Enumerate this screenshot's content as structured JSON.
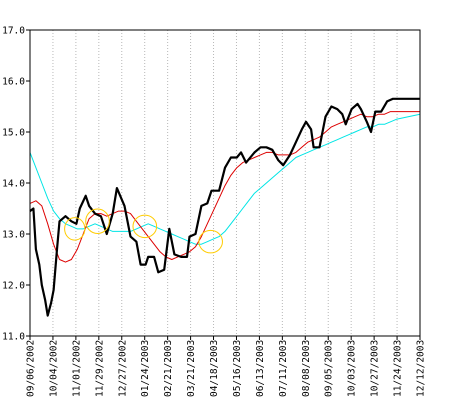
{
  "chart_data": {
    "type": "line",
    "title": "",
    "xlabel": "",
    "ylabel": "",
    "ylim": [
      11.0,
      17.0
    ],
    "y_ticks": [
      "11.0",
      "12.0",
      "13.0",
      "14.0",
      "15.0",
      "16.0",
      "17.0"
    ],
    "x_tick_labels": [
      "09/06/2002",
      "10/04/2002",
      "11/01/2002",
      "11/29/2002",
      "12/27/2002",
      "01/24/2003",
      "02/21/2003",
      "03/21/2003",
      "04/18/2003",
      "05/16/2003",
      "06/13/2003",
      "07/11/2003",
      "08/08/2003",
      "09/05/2003",
      "10/03/2003",
      "10/27/2003",
      "11/24/2003",
      "12/12/2003"
    ],
    "grid": "vertical dotted lines at x ticks",
    "x_range": [
      "2002-09-06",
      "2003-12-12"
    ],
    "series": [
      {
        "key": "price",
        "color": "#000000",
        "points": [
          [
            "2002-09-06",
            13.45
          ],
          [
            "2002-09-10",
            13.5
          ],
          [
            "2002-09-13",
            12.7
          ],
          [
            "2002-09-17",
            12.4
          ],
          [
            "2002-09-20",
            12.0
          ],
          [
            "2002-09-24",
            11.7
          ],
          [
            "2002-09-27",
            11.4
          ],
          [
            "2002-10-01",
            11.65
          ],
          [
            "2002-10-04",
            11.9
          ],
          [
            "2002-10-08",
            12.7
          ],
          [
            "2002-10-11",
            13.25
          ],
          [
            "2002-10-18",
            13.35
          ],
          [
            "2002-10-25",
            13.25
          ],
          [
            "2002-10-31",
            13.2
          ],
          [
            "2002-11-04",
            13.5
          ],
          [
            "2002-11-11",
            13.75
          ],
          [
            "2002-11-15",
            13.55
          ],
          [
            "2002-11-22",
            13.4
          ],
          [
            "2002-11-29",
            13.35
          ],
          [
            "2002-12-06",
            13.0
          ],
          [
            "2002-12-13",
            13.4
          ],
          [
            "2002-12-18",
            13.9
          ],
          [
            "2002-12-27",
            13.55
          ],
          [
            "2003-01-03",
            12.95
          ],
          [
            "2003-01-10",
            12.85
          ],
          [
            "2003-01-15",
            12.4
          ],
          [
            "2003-01-21",
            12.4
          ],
          [
            "2003-01-24",
            12.55
          ],
          [
            "2003-01-31",
            12.55
          ],
          [
            "2003-02-05",
            12.25
          ],
          [
            "2003-02-12",
            12.3
          ],
          [
            "2003-02-18",
            13.1
          ],
          [
            "2003-02-24",
            12.6
          ],
          [
            "2003-03-04",
            12.55
          ],
          [
            "2003-03-11",
            12.55
          ],
          [
            "2003-03-14",
            12.95
          ],
          [
            "2003-03-21",
            13.0
          ],
          [
            "2003-03-28",
            13.55
          ],
          [
            "2003-04-04",
            13.6
          ],
          [
            "2003-04-09",
            13.85
          ],
          [
            "2003-04-18",
            13.85
          ],
          [
            "2003-04-25",
            14.3
          ],
          [
            "2003-05-02",
            14.5
          ],
          [
            "2003-05-09",
            14.5
          ],
          [
            "2003-05-14",
            14.6
          ],
          [
            "2003-05-20",
            14.4
          ],
          [
            "2003-05-30",
            14.6
          ],
          [
            "2003-06-06",
            14.7
          ],
          [
            "2003-06-13",
            14.7
          ],
          [
            "2003-06-20",
            14.65
          ],
          [
            "2003-06-27",
            14.45
          ],
          [
            "2003-07-03",
            14.35
          ],
          [
            "2003-07-11",
            14.55
          ],
          [
            "2003-07-18",
            14.8
          ],
          [
            "2003-07-25",
            15.05
          ],
          [
            "2003-07-30",
            15.2
          ],
          [
            "2003-08-05",
            15.05
          ],
          [
            "2003-08-08",
            14.7
          ],
          [
            "2003-08-15",
            14.7
          ],
          [
            "2003-08-22",
            15.3
          ],
          [
            "2003-08-29",
            15.5
          ],
          [
            "2003-09-05",
            15.45
          ],
          [
            "2003-09-11",
            15.35
          ],
          [
            "2003-09-15",
            15.15
          ],
          [
            "2003-09-22",
            15.45
          ],
          [
            "2003-09-29",
            15.55
          ],
          [
            "2003-10-03",
            15.45
          ],
          [
            "2003-10-10",
            15.2
          ],
          [
            "2003-10-15",
            15.0
          ],
          [
            "2003-10-20",
            15.4
          ],
          [
            "2003-10-27",
            15.4
          ],
          [
            "2003-11-03",
            15.6
          ],
          [
            "2003-11-10",
            15.65
          ],
          [
            "2003-12-12",
            15.65
          ]
        ]
      },
      {
        "key": "moving_average_short",
        "color": "#dd0000",
        "points": [
          [
            "2002-09-06",
            13.6
          ],
          [
            "2002-09-13",
            13.65
          ],
          [
            "2002-09-20",
            13.55
          ],
          [
            "2002-09-27",
            13.2
          ],
          [
            "2002-10-04",
            12.8
          ],
          [
            "2002-10-11",
            12.5
          ],
          [
            "2002-10-18",
            12.45
          ],
          [
            "2002-10-25",
            12.5
          ],
          [
            "2002-11-01",
            12.7
          ],
          [
            "2002-11-08",
            13.0
          ],
          [
            "2002-11-15",
            13.3
          ],
          [
            "2002-11-22",
            13.4
          ],
          [
            "2002-11-29",
            13.4
          ],
          [
            "2002-12-06",
            13.35
          ],
          [
            "2002-12-13",
            13.4
          ],
          [
            "2002-12-20",
            13.45
          ],
          [
            "2002-12-27",
            13.45
          ],
          [
            "2003-01-03",
            13.4
          ],
          [
            "2003-01-10",
            13.25
          ],
          [
            "2003-01-17",
            13.1
          ],
          [
            "2003-01-24",
            12.95
          ],
          [
            "2003-01-31",
            12.8
          ],
          [
            "2003-02-07",
            12.65
          ],
          [
            "2003-02-14",
            12.55
          ],
          [
            "2003-02-21",
            12.5
          ],
          [
            "2003-02-28",
            12.55
          ],
          [
            "2003-03-07",
            12.6
          ],
          [
            "2003-03-14",
            12.65
          ],
          [
            "2003-03-21",
            12.75
          ],
          [
            "2003-03-28",
            12.95
          ],
          [
            "2003-04-04",
            13.2
          ],
          [
            "2003-04-11",
            13.45
          ],
          [
            "2003-04-18",
            13.7
          ],
          [
            "2003-04-25",
            13.95
          ],
          [
            "2003-05-02",
            14.15
          ],
          [
            "2003-05-09",
            14.3
          ],
          [
            "2003-05-16",
            14.4
          ],
          [
            "2003-05-23",
            14.45
          ],
          [
            "2003-05-30",
            14.5
          ],
          [
            "2003-06-06",
            14.55
          ],
          [
            "2003-06-13",
            14.6
          ],
          [
            "2003-06-20",
            14.6
          ],
          [
            "2003-06-27",
            14.55
          ],
          [
            "2003-07-04",
            14.55
          ],
          [
            "2003-07-11",
            14.55
          ],
          [
            "2003-07-18",
            14.6
          ],
          [
            "2003-07-25",
            14.7
          ],
          [
            "2003-08-01",
            14.8
          ],
          [
            "2003-08-08",
            14.85
          ],
          [
            "2003-08-15",
            14.9
          ],
          [
            "2003-08-22",
            15.0
          ],
          [
            "2003-08-29",
            15.1
          ],
          [
            "2003-09-05",
            15.15
          ],
          [
            "2003-09-12",
            15.2
          ],
          [
            "2003-09-19",
            15.25
          ],
          [
            "2003-09-26",
            15.3
          ],
          [
            "2003-10-03",
            15.35
          ],
          [
            "2003-10-10",
            15.3
          ],
          [
            "2003-10-17",
            15.3
          ],
          [
            "2003-10-24",
            15.35
          ],
          [
            "2003-10-31",
            15.35
          ],
          [
            "2003-11-07",
            15.4
          ],
          [
            "2003-11-14",
            15.4
          ],
          [
            "2003-12-12",
            15.4
          ]
        ]
      },
      {
        "key": "moving_average_long",
        "color": "#00e5e5",
        "points": [
          [
            "2002-09-06",
            14.6
          ],
          [
            "2002-09-13",
            14.3
          ],
          [
            "2002-09-20",
            14.0
          ],
          [
            "2002-09-27",
            13.7
          ],
          [
            "2002-10-04",
            13.45
          ],
          [
            "2002-10-11",
            13.3
          ],
          [
            "2002-10-18",
            13.2
          ],
          [
            "2002-10-25",
            13.15
          ],
          [
            "2002-11-01",
            13.1
          ],
          [
            "2002-11-08",
            13.1
          ],
          [
            "2002-11-15",
            13.15
          ],
          [
            "2002-11-22",
            13.2
          ],
          [
            "2002-11-29",
            13.15
          ],
          [
            "2002-12-06",
            13.1
          ],
          [
            "2002-12-13",
            13.05
          ],
          [
            "2002-12-20",
            13.05
          ],
          [
            "2002-12-27",
            13.05
          ],
          [
            "2003-01-03",
            13.05
          ],
          [
            "2003-01-10",
            13.1
          ],
          [
            "2003-01-17",
            13.15
          ],
          [
            "2003-01-24",
            13.2
          ],
          [
            "2003-01-31",
            13.15
          ],
          [
            "2003-02-07",
            13.1
          ],
          [
            "2003-02-14",
            13.05
          ],
          [
            "2003-02-21",
            13.0
          ],
          [
            "2003-02-28",
            12.95
          ],
          [
            "2003-03-07",
            12.9
          ],
          [
            "2003-03-14",
            12.85
          ],
          [
            "2003-03-21",
            12.8
          ],
          [
            "2003-03-28",
            12.8
          ],
          [
            "2003-04-04",
            12.85
          ],
          [
            "2003-04-11",
            12.9
          ],
          [
            "2003-04-18",
            12.95
          ],
          [
            "2003-04-25",
            13.05
          ],
          [
            "2003-05-02",
            13.2
          ],
          [
            "2003-05-09",
            13.35
          ],
          [
            "2003-05-16",
            13.5
          ],
          [
            "2003-05-23",
            13.65
          ],
          [
            "2003-05-30",
            13.8
          ],
          [
            "2003-06-06",
            13.9
          ],
          [
            "2003-06-13",
            14.0
          ],
          [
            "2003-06-20",
            14.1
          ],
          [
            "2003-06-27",
            14.2
          ],
          [
            "2003-07-04",
            14.3
          ],
          [
            "2003-07-11",
            14.4
          ],
          [
            "2003-07-18",
            14.5
          ],
          [
            "2003-07-25",
            14.55
          ],
          [
            "2003-08-01",
            14.6
          ],
          [
            "2003-08-08",
            14.65
          ],
          [
            "2003-08-15",
            14.7
          ],
          [
            "2003-08-22",
            14.75
          ],
          [
            "2003-08-29",
            14.8
          ],
          [
            "2003-09-05",
            14.85
          ],
          [
            "2003-09-12",
            14.9
          ],
          [
            "2003-09-19",
            14.95
          ],
          [
            "2003-09-26",
            15.0
          ],
          [
            "2003-10-03",
            15.05
          ],
          [
            "2003-10-10",
            15.1
          ],
          [
            "2003-10-17",
            15.1
          ],
          [
            "2003-10-24",
            15.15
          ],
          [
            "2003-10-31",
            15.15
          ],
          [
            "2003-11-07",
            15.2
          ],
          [
            "2003-11-14",
            15.25
          ],
          [
            "2003-12-12",
            15.35
          ]
        ]
      }
    ],
    "annotations": [
      {
        "type": "ellipse",
        "color": "#ffcc00",
        "x": "2002-10-29",
        "y": 13.1,
        "rx_days": 12,
        "ry": 0.22
      },
      {
        "type": "ellipse",
        "color": "#ffcc00",
        "x": "2002-11-25",
        "y": 13.25,
        "rx_days": 14,
        "ry": 0.24
      },
      {
        "type": "ellipse",
        "color": "#ffcc00",
        "x": "2003-01-20",
        "y": 13.15,
        "rx_days": 14,
        "ry": 0.22
      },
      {
        "type": "ellipse",
        "color": "#ffcc00",
        "x": "2003-04-08",
        "y": 12.85,
        "rx_days": 14,
        "ry": 0.22
      }
    ]
  }
}
